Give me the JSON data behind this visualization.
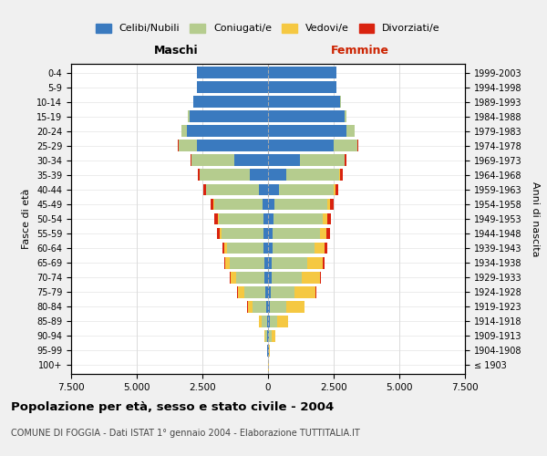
{
  "age_groups": [
    "100+",
    "95-99",
    "90-94",
    "85-89",
    "80-84",
    "75-79",
    "70-74",
    "65-69",
    "60-64",
    "55-59",
    "50-54",
    "45-49",
    "40-44",
    "35-39",
    "30-34",
    "25-29",
    "20-24",
    "15-19",
    "10-14",
    "5-9",
    "0-4"
  ],
  "birth_years": [
    "≤ 1903",
    "1904-1908",
    "1909-1913",
    "1914-1918",
    "1919-1923",
    "1924-1928",
    "1929-1933",
    "1934-1938",
    "1939-1943",
    "1944-1948",
    "1949-1953",
    "1954-1958",
    "1959-1963",
    "1964-1968",
    "1969-1973",
    "1974-1978",
    "1979-1983",
    "1984-1988",
    "1989-1993",
    "1994-1998",
    "1999-2003"
  ],
  "males": {
    "celibe": [
      10,
      20,
      30,
      50,
      80,
      100,
      130,
      150,
      160,
      160,
      170,
      200,
      350,
      700,
      1300,
      2700,
      3100,
      3000,
      2850,
      2700,
      2700
    ],
    "coniugato": [
      5,
      20,
      70,
      200,
      500,
      800,
      1100,
      1300,
      1400,
      1600,
      1700,
      1850,
      2000,
      1900,
      1600,
      700,
      200,
      50,
      10,
      0,
      0
    ],
    "vedovo": [
      2,
      10,
      50,
      100,
      200,
      250,
      200,
      180,
      120,
      80,
      50,
      30,
      20,
      10,
      5,
      2,
      1,
      0,
      0,
      0,
      0
    ],
    "divorziato": [
      0,
      0,
      0,
      5,
      10,
      20,
      30,
      50,
      70,
      100,
      120,
      120,
      100,
      80,
      50,
      20,
      5,
      2,
      0,
      0,
      0
    ]
  },
  "females": {
    "nubile": [
      10,
      20,
      30,
      60,
      80,
      100,
      130,
      150,
      160,
      170,
      200,
      250,
      400,
      700,
      1200,
      2500,
      3000,
      2900,
      2750,
      2600,
      2600
    ],
    "coniugata": [
      5,
      20,
      100,
      300,
      600,
      900,
      1150,
      1350,
      1600,
      1800,
      1900,
      2000,
      2100,
      2000,
      1700,
      900,
      300,
      80,
      15,
      0,
      0
    ],
    "vedova": [
      5,
      30,
      150,
      400,
      700,
      800,
      700,
      600,
      400,
      250,
      150,
      100,
      60,
      30,
      15,
      5,
      2,
      1,
      0,
      0,
      0
    ],
    "divorziata": [
      0,
      0,
      0,
      5,
      15,
      30,
      50,
      70,
      100,
      130,
      150,
      160,
      130,
      100,
      70,
      30,
      10,
      2,
      0,
      0,
      0
    ]
  },
  "colors": {
    "celibe": "#3a7abf",
    "coniugato": "#b5cc8e",
    "vedovo": "#f5c842",
    "divorziato": "#d9230f"
  },
  "xlim": 7500,
  "xticks": [
    -7500,
    -5000,
    -2500,
    0,
    2500,
    5000,
    7500
  ],
  "xtick_labels": [
    "7.500",
    "5.000",
    "2.500",
    "0",
    "2.500",
    "5.000",
    "7.500"
  ],
  "title": "Popolazione per età, sesso e stato civile - 2004",
  "subtitle": "COMUNE DI FOGGIA - Dati ISTAT 1° gennaio 2004 - Elaborazione TUTTITALIA.IT",
  "ylabel_left": "Fasce di età",
  "ylabel_right": "Anni di nascita",
  "label_maschi": "Maschi",
  "label_femmine": "Femmine",
  "legend_labels": [
    "Celibi/Nubili",
    "Coniugati/e",
    "Vedovi/e",
    "Divorziati/e"
  ],
  "bg_color": "#f0f0f0",
  "plot_bg_color": "#ffffff"
}
